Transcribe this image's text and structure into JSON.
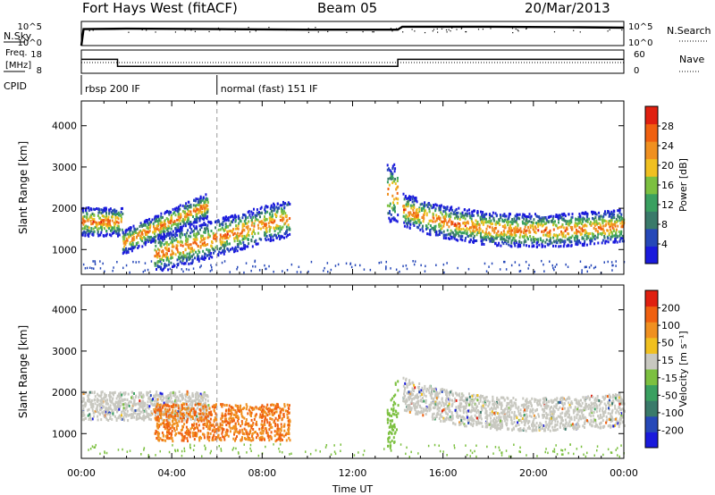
{
  "header": {
    "station": "Fort Hays West (fitACF)",
    "beam": "Beam 05",
    "date": "20/Mar/2013"
  },
  "top_panels": {
    "nsky_label": "N.Sky",
    "nsky_ticks": [
      "10^5",
      "10^0"
    ],
    "nsearch_label": "N.Search",
    "nsearch_ticks": [
      "10^5",
      "10^0"
    ],
    "freq_label": "Freq.",
    "freq_unit": "[MHz]",
    "freq_ticks": [
      "18",
      "8"
    ],
    "nave_label": "Nave",
    "nave_ticks": [
      "60",
      "0"
    ],
    "cpid_label": "CPID",
    "cpid_segments": [
      {
        "label": "rbsp 200 IF",
        "start_hour": 0,
        "end_hour": 6
      },
      {
        "label": "normal (fast) 151 IF",
        "start_hour": 6,
        "end_hour": 24
      }
    ]
  },
  "chart_data": [
    {
      "type": "line",
      "title": "N.Sky / N.Search",
      "x": [
        0,
        0.1,
        2,
        6,
        10,
        14,
        14.2,
        18,
        22,
        24
      ],
      "series": [
        {
          "name": "N.Sky",
          "values": [
            0,
            3.4,
            3.5,
            3.4,
            3.3,
            3.3,
            3.9,
            3.9,
            3.8,
            3.7
          ]
        }
      ],
      "ylim": [
        0,
        5
      ]
    },
    {
      "type": "line",
      "title": "Freq. / Nave",
      "x": [
        0,
        1.6,
        1.6,
        14,
        14,
        24
      ],
      "series": [
        {
          "name": "Freq.",
          "values": [
            14,
            14,
            11,
            11,
            14,
            14
          ]
        },
        {
          "name": "Nave",
          "values": [
            26,
            26,
            26,
            26,
            26,
            26
          ]
        }
      ],
      "ylim": [
        8,
        18
      ]
    },
    {
      "type": "heatmap",
      "xlabel": "",
      "ylabel": "Slant Range [km]",
      "xlim": [
        0,
        24
      ],
      "ylim": [
        400,
        4600
      ],
      "yticks": [
        "4000",
        "3000",
        "2000",
        "1000"
      ],
      "colorbar_label": "Power [dB]",
      "colorbar_ticks": [
        "28",
        "24",
        "20",
        "16",
        "12",
        "8",
        "4"
      ],
      "colors": [
        "#1a1adc",
        "#2648b8",
        "#3a7a6a",
        "#3aa060",
        "#7cc040",
        "#f0c020",
        "#f09020",
        "#f06010",
        "#e02010"
      ],
      "echo_regions": [
        {
          "start_hour": 0.0,
          "end_hour": 1.8,
          "range_center_km": 1700,
          "range_width_km": 700
        },
        {
          "start_hour": 1.8,
          "end_hour": 5.6,
          "range_center_km": 1650,
          "range_width_km": 600
        },
        {
          "start_hour": 3.2,
          "end_hour": 9.2,
          "range_center_km": 1300,
          "range_width_km": 900
        },
        {
          "start_hour": 13.5,
          "end_hour": 14.0,
          "range_center_km": 2400,
          "range_width_km": 1400
        },
        {
          "start_hour": 14.2,
          "end_hour": 24.0,
          "range_center_km": 1800,
          "range_width_km": 800
        }
      ]
    },
    {
      "type": "heatmap",
      "xlabel": "Time UT",
      "ylabel": "Slant Range [km]",
      "xlim": [
        0,
        24
      ],
      "ylim": [
        400,
        4600
      ],
      "xticks": [
        "00:00",
        "04:00",
        "08:00",
        "12:00",
        "16:00",
        "20:00",
        "00:00"
      ],
      "yticks": [
        "4000",
        "3000",
        "2000",
        "1000"
      ],
      "colorbar_label": "Velocity [m s⁻¹]",
      "colorbar_ticks": [
        "200",
        "100",
        "50",
        "15",
        "-15",
        "-50",
        "-100",
        "-200"
      ],
      "colors": [
        "#1a1adc",
        "#2648b8",
        "#3a7a6a",
        "#3aa060",
        "#7cc040",
        "#c8c8c0",
        "#f0c020",
        "#f09020",
        "#f06010",
        "#e02010"
      ],
      "echo_regions": [
        {
          "start_hour": 0.0,
          "end_hour": 5.6,
          "range_center_km": 1700,
          "range_width_km": 700
        },
        {
          "start_hour": 3.2,
          "end_hour": 9.2,
          "range_center_km": 1300,
          "range_width_km": 900
        },
        {
          "start_hour": 13.5,
          "end_hour": 14.0,
          "range_center_km": 2400,
          "range_width_km": 1400
        },
        {
          "start_hour": 14.2,
          "end_hour": 24.0,
          "range_center_km": 1800,
          "range_width_km": 800
        }
      ]
    }
  ]
}
